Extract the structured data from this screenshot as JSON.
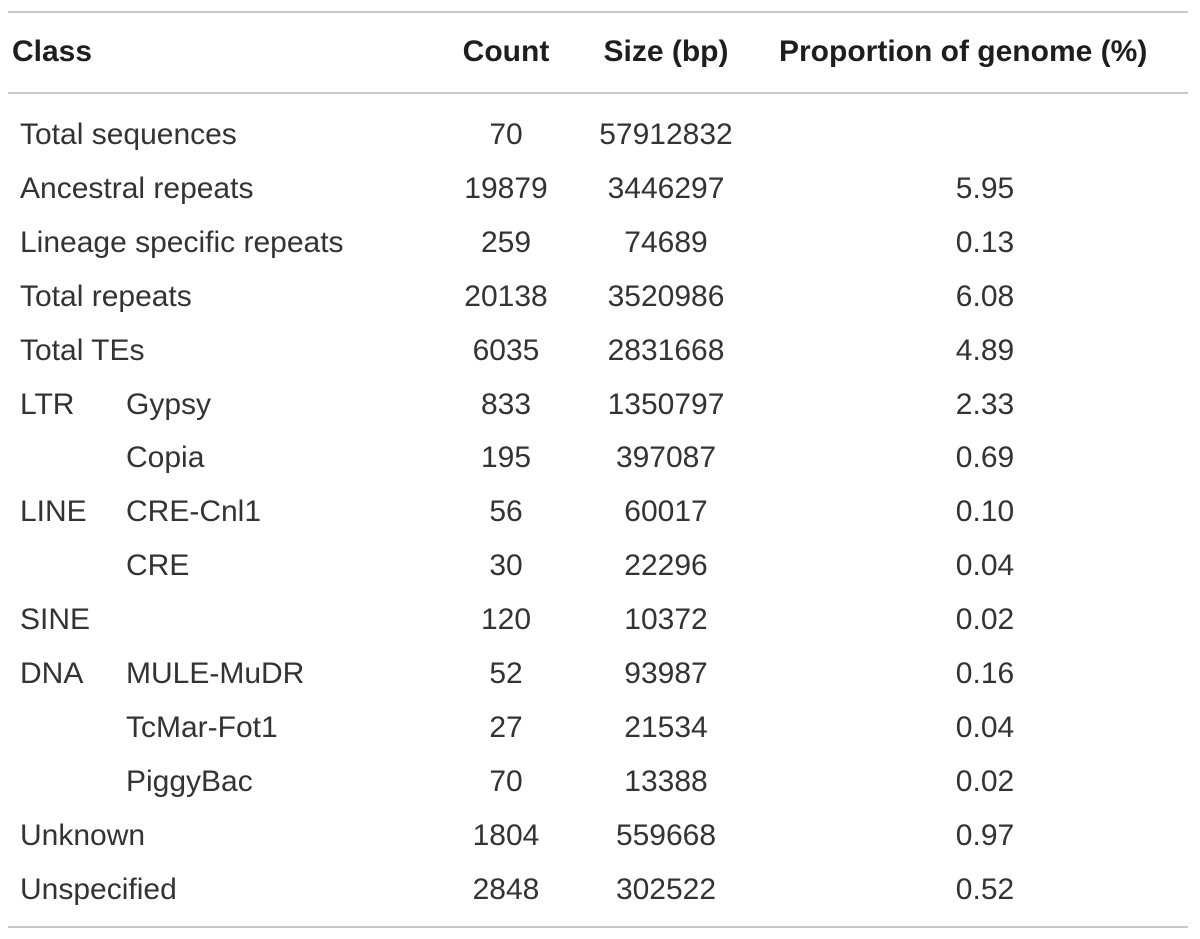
{
  "table": {
    "headers": {
      "class": "Class",
      "count": "Count",
      "size": "Size (bp)",
      "proportion": "Proportion of genome (%)"
    },
    "rows": [
      {
        "class": "Total sequences",
        "subclass": "",
        "count": "70",
        "size": "57912832",
        "proportion": ""
      },
      {
        "class": "Ancestral repeats",
        "subclass": "",
        "count": "19879",
        "size": "3446297",
        "proportion": "5.95"
      },
      {
        "class": "Lineage specific repeats",
        "subclass": "",
        "count": "259",
        "size": "74689",
        "proportion": "0.13"
      },
      {
        "class": "Total repeats",
        "subclass": "",
        "count": "20138",
        "size": "3520986",
        "proportion": "6.08"
      },
      {
        "class": "Total TEs",
        "subclass": "",
        "count": "6035",
        "size": "2831668",
        "proportion": "4.89"
      },
      {
        "class": "LTR",
        "subclass": "Gypsy",
        "count": "833",
        "size": "1350797",
        "proportion": "2.33"
      },
      {
        "class": "",
        "subclass": "Copia",
        "count": "195",
        "size": "397087",
        "proportion": "0.69"
      },
      {
        "class": "LINE",
        "subclass": "CRE-Cnl1",
        "count": "56",
        "size": "60017",
        "proportion": "0.10"
      },
      {
        "class": "",
        "subclass": "CRE",
        "count": "30",
        "size": "22296",
        "proportion": "0.04"
      },
      {
        "class": "SINE",
        "subclass": "",
        "count": "120",
        "size": "10372",
        "proportion": "0.02"
      },
      {
        "class": "DNA",
        "subclass": "MULE-MuDR",
        "count": "52",
        "size": "93987",
        "proportion": "0.16"
      },
      {
        "class": "",
        "subclass": "TcMar-Fot1",
        "count": "27",
        "size": "21534",
        "proportion": "0.04"
      },
      {
        "class": "",
        "subclass": "PiggyBac",
        "count": "70",
        "size": "13388",
        "proportion": "0.02"
      },
      {
        "class": "Unknown",
        "subclass": "",
        "count": "1804",
        "size": "559668",
        "proportion": "0.97"
      },
      {
        "class": "Unspecified",
        "subclass": "",
        "count": "2848",
        "size": "302522",
        "proportion": "0.52"
      }
    ]
  }
}
